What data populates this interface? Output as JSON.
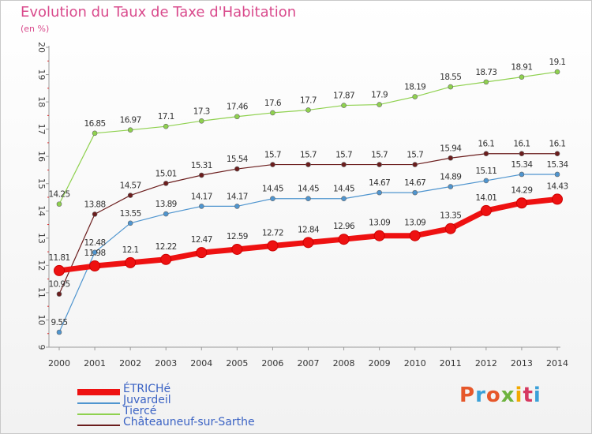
{
  "header": {
    "title": "Evolution du Taux de Taxe d'Habitation",
    "subtitle": "(en %)"
  },
  "logo": {
    "text": "Proxiti",
    "colors": [
      "#e6572a",
      "#3aa0d8",
      "#e6572a",
      "#6db33f",
      "#f2a900",
      "#d6385f",
      "#3aa0d8"
    ]
  },
  "chart_data": {
    "type": "line",
    "x": [
      2000,
      2001,
      2002,
      2003,
      2004,
      2005,
      2006,
      2007,
      2008,
      2009,
      2010,
      2011,
      2012,
      2013,
      2014
    ],
    "ylim": [
      9,
      20
    ],
    "yticks": [
      9,
      10,
      11,
      12,
      13,
      14,
      15,
      16,
      17,
      18,
      19,
      20
    ],
    "grid": false,
    "legend_position": "bottom-left",
    "series": [
      {
        "name": "Tiercé",
        "color": "#8fd14f",
        "width": 1.2,
        "values": [
          14.25,
          16.85,
          16.97,
          17.1,
          17.3,
          17.46,
          17.6,
          17.7,
          17.87,
          17.9,
          18.19,
          18.55,
          18.73,
          18.91,
          19.1
        ],
        "labels": [
          "14.25",
          "16.85",
          "16.97",
          "17.1",
          "17.3",
          "17.46",
          "17.6",
          "17.7",
          "17.87",
          "17.9",
          "18.19",
          "18.55",
          "18.73",
          "18.91",
          "19.1"
        ]
      },
      {
        "name": "Châteauneuf-sur-Sarthe",
        "color": "#6b1d1d",
        "width": 1.2,
        "values": [
          10.95,
          13.88,
          14.57,
          15.01,
          15.31,
          15.54,
          15.7,
          15.7,
          15.7,
          15.7,
          15.7,
          15.94,
          16.1,
          16.1,
          16.1
        ],
        "labels": [
          "10.95",
          "13.88",
          "14.57",
          "15.01",
          "15.31",
          "15.54",
          "15.7",
          "15.7",
          "15.7",
          "15.7",
          "15.7",
          "15.94",
          "16.1",
          "16.1",
          "16.1"
        ]
      },
      {
        "name": "Juvardeil",
        "color": "#4f95cf",
        "width": 1.2,
        "values": [
          9.55,
          12.48,
          13.55,
          13.89,
          14.17,
          14.17,
          14.45,
          14.45,
          14.45,
          14.67,
          14.67,
          14.89,
          15.11,
          15.34,
          15.34
        ],
        "labels": [
          "9.55",
          "12.48",
          "13.55",
          "13.89",
          "14.17",
          "14.17",
          "14.45",
          "14.45",
          "14.45",
          "14.67",
          "14.67",
          "14.89",
          "15.11",
          "15.34",
          "15.34"
        ]
      },
      {
        "name": "ÉTRICHé",
        "color": "#ee1111",
        "width": 7,
        "values": [
          11.81,
          11.98,
          12.1,
          12.22,
          12.47,
          12.59,
          12.72,
          12.84,
          12.96,
          13.09,
          13.09,
          13.35,
          14.01,
          14.29,
          14.43
        ],
        "labels": [
          "11.81",
          "11.98",
          "12.1",
          "12.22",
          "12.47",
          "12.59",
          "12.72",
          "12.84",
          "12.96",
          "13.09",
          "13.09",
          "13.35",
          "14.01",
          "14.29",
          "14.43"
        ]
      }
    ],
    "legend": [
      {
        "name": "ÉTRICHé",
        "color": "#ee1111"
      },
      {
        "name": "Juvardeil",
        "color": "#4f95cf"
      },
      {
        "name": "Tiercé",
        "color": "#8fd14f"
      },
      {
        "name": "Châteauneuf-sur-Sarthe",
        "color": "#6b1d1d"
      }
    ]
  }
}
